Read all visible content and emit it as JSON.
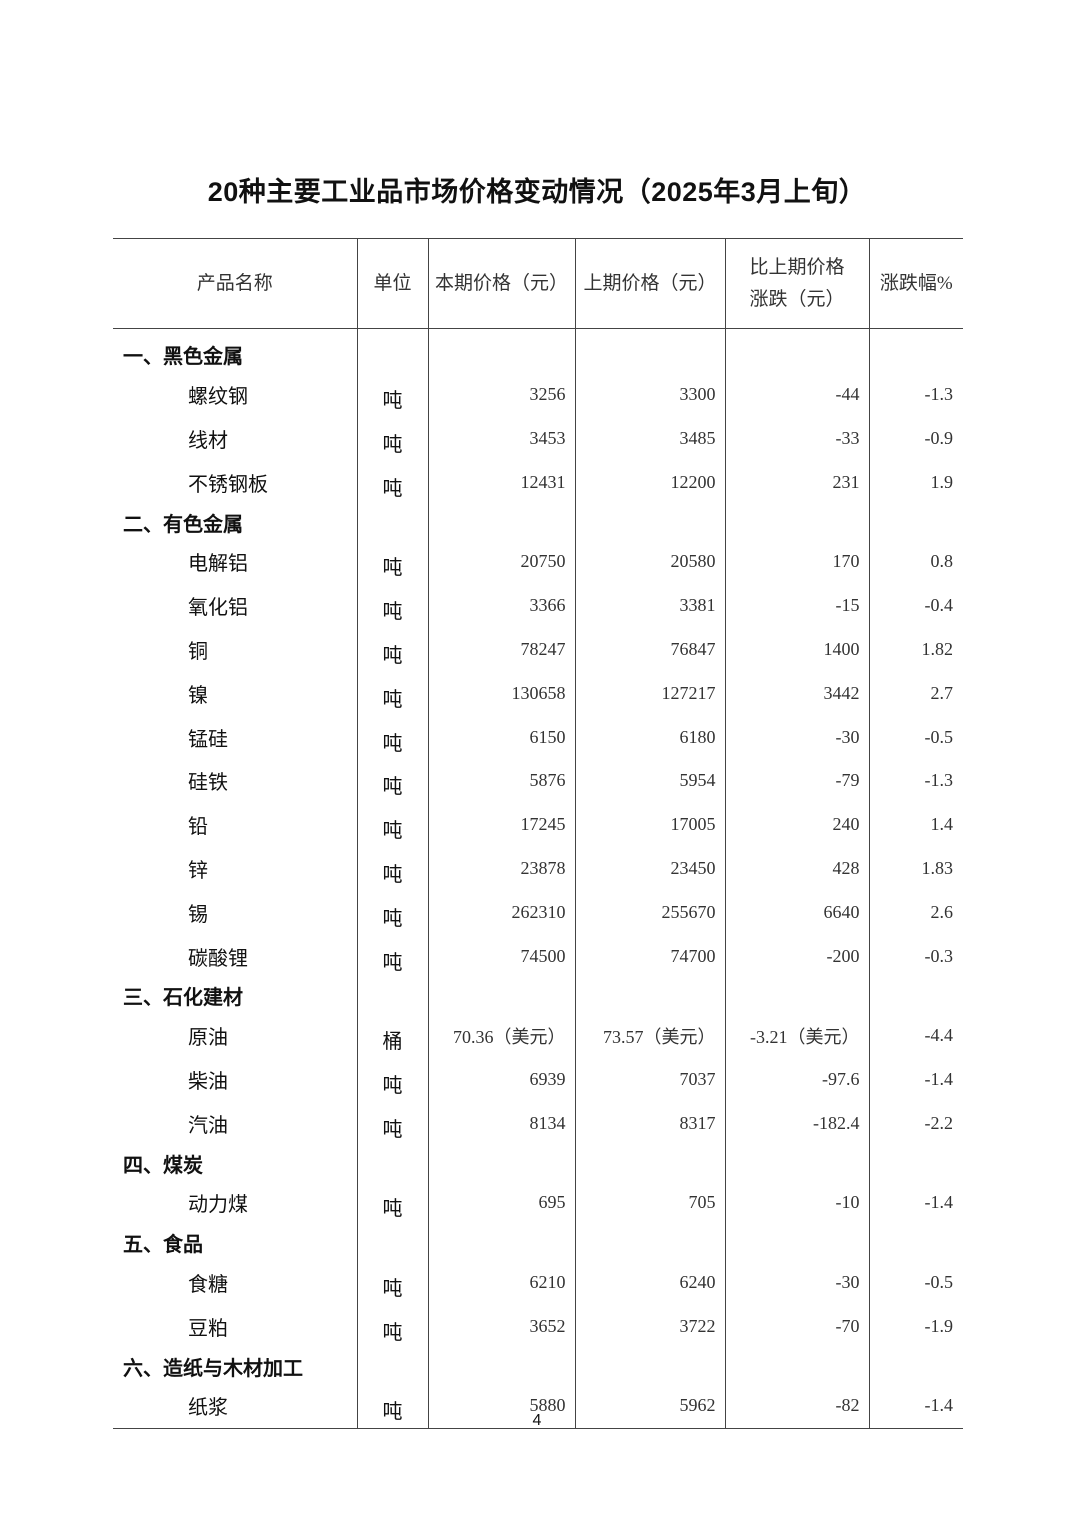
{
  "title": "20种主要工业品市场价格变动情况（2025年3月上旬）",
  "headers": [
    "产品名称",
    "单位",
    "本期价格（元）",
    "上期价格（元）",
    "比上期价格\n涨跌（元）",
    "涨跌幅%"
  ],
  "sections": [
    {
      "name": "一、黑色金属",
      "items": [
        {
          "name": "螺纹钢",
          "unit": "吨",
          "current": "3256",
          "previous": "3300",
          "change": "-44",
          "pct": "-1.3"
        },
        {
          "name": "线材",
          "unit": "吨",
          "current": "3453",
          "previous": "3485",
          "change": "-33",
          "pct": "-0.9"
        },
        {
          "name": "不锈钢板",
          "unit": "吨",
          "current": "12431",
          "previous": "12200",
          "change": "231",
          "pct": "1.9"
        }
      ]
    },
    {
      "name": "二、有色金属",
      "items": [
        {
          "name": "电解铝",
          "unit": "吨",
          "current": "20750",
          "previous": "20580",
          "change": "170",
          "pct": "0.8"
        },
        {
          "name": "氧化铝",
          "unit": "吨",
          "current": "3366",
          "previous": "3381",
          "change": "-15",
          "pct": "-0.4"
        },
        {
          "name": "铜",
          "unit": "吨",
          "current": "78247",
          "previous": "76847",
          "change": "1400",
          "pct": "1.82"
        },
        {
          "name": "镍",
          "unit": "吨",
          "current": "130658",
          "previous": "127217",
          "change": "3442",
          "pct": "2.7"
        },
        {
          "name": "锰硅",
          "unit": "吨",
          "current": "6150",
          "previous": "6180",
          "change": "-30",
          "pct": "-0.5"
        },
        {
          "name": "硅铁",
          "unit": "吨",
          "current": "5876",
          "previous": "5954",
          "change": "-79",
          "pct": "-1.3"
        },
        {
          "name": "铅",
          "unit": "吨",
          "current": "17245",
          "previous": "17005",
          "change": "240",
          "pct": "1.4"
        },
        {
          "name": "锌",
          "unit": "吨",
          "current": "23878",
          "previous": "23450",
          "change": "428",
          "pct": "1.83"
        },
        {
          "name": "锡",
          "unit": "吨",
          "current": "262310",
          "previous": "255670",
          "change": "6640",
          "pct": "2.6"
        },
        {
          "name": "碳酸锂",
          "unit": "吨",
          "current": "74500",
          "previous": "74700",
          "change": "-200",
          "pct": "-0.3"
        }
      ]
    },
    {
      "name": "三、石化建材",
      "items": [
        {
          "name": "原油",
          "unit": "桶",
          "current": "70.36（美元）",
          "previous": "73.57（美元）",
          "change": "-3.21（美元）",
          "pct": "-4.4"
        },
        {
          "name": "柴油",
          "unit": "吨",
          "current": "6939",
          "previous": "7037",
          "change": "-97.6",
          "pct": "-1.4"
        },
        {
          "name": "汽油",
          "unit": "吨",
          "current": "8134",
          "previous": "8317",
          "change": "-182.4",
          "pct": "-2.2"
        }
      ]
    },
    {
      "name": "四、煤炭",
      "items": [
        {
          "name": "动力煤",
          "unit": "吨",
          "current": "695",
          "previous": "705",
          "change": "-10",
          "pct": "-1.4"
        }
      ]
    },
    {
      "name": "五、食品",
      "items": [
        {
          "name": "食糖",
          "unit": "吨",
          "current": "6210",
          "previous": "6240",
          "change": "-30",
          "pct": "-0.5"
        },
        {
          "name": "豆粕",
          "unit": "吨",
          "current": "3652",
          "previous": "3722",
          "change": "-70",
          "pct": "-1.9"
        }
      ]
    },
    {
      "name": "六、造纸与木材加工",
      "items": [
        {
          "name": "纸浆",
          "unit": "吨",
          "current": "5880",
          "previous": "5962",
          "change": "-82",
          "pct": "-1.4"
        }
      ]
    }
  ],
  "page_number": "4"
}
